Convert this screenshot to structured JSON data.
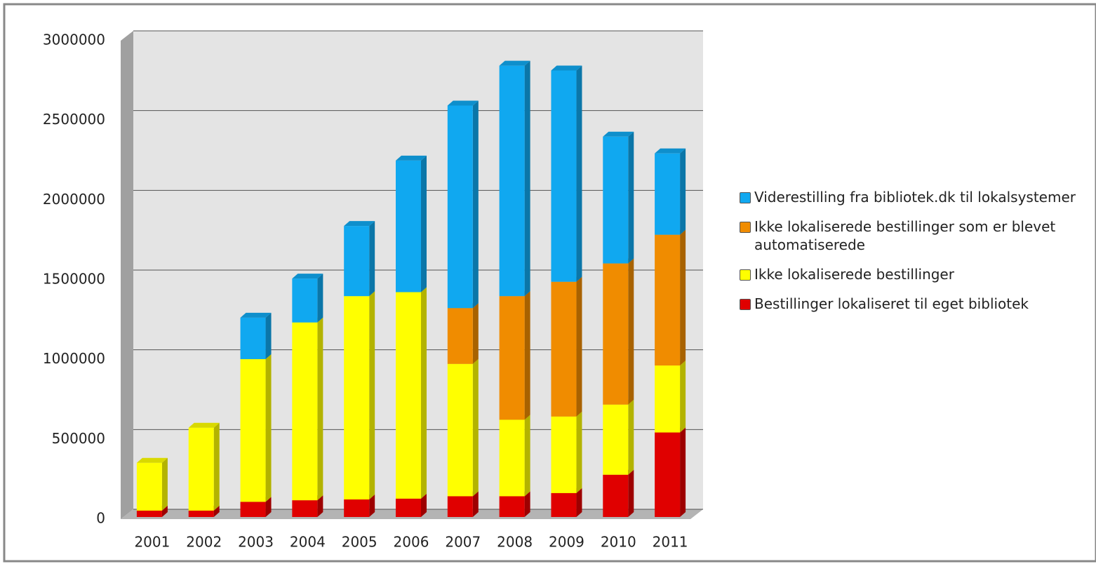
{
  "chart_data": {
    "type": "bar",
    "stacked": true,
    "categories": [
      "2001",
      "2002",
      "2003",
      "2004",
      "2005",
      "2006",
      "2007",
      "2008",
      "2009",
      "2010",
      "2011"
    ],
    "series": [
      {
        "name": "Bestillinger lokaliseret til eget bibliotek",
        "color": "#e00000",
        "values": [
          40000,
          40000,
          95000,
          105000,
          110000,
          115000,
          130000,
          130000,
          150000,
          265000,
          530000
        ]
      },
      {
        "name": "Ikke lokaliserede bestillinger",
        "color": "#ffff00",
        "values": [
          300000,
          520000,
          895000,
          1115000,
          1275000,
          1295000,
          830000,
          480000,
          480000,
          440000,
          420000
        ]
      },
      {
        "name": "Ikke lokaliserede bestillinger som er blevet automatiserede",
        "color": "#f08c00",
        "values": [
          0,
          0,
          0,
          0,
          0,
          0,
          350000,
          775000,
          845000,
          885000,
          820000
        ]
      },
      {
        "name": "Viderestilling fra bibliotek.dk til lokalsystemer",
        "color": "#10a8f0",
        "values": [
          0,
          0,
          260000,
          275000,
          440000,
          825000,
          1270000,
          1445000,
          1325000,
          795000,
          510000
        ]
      }
    ],
    "ylim": [
      0,
      3000000
    ],
    "yticks": [
      0,
      500000,
      1000000,
      1500000,
      2000000,
      2500000,
      3000000
    ],
    "grid": true,
    "legend": "right"
  }
}
